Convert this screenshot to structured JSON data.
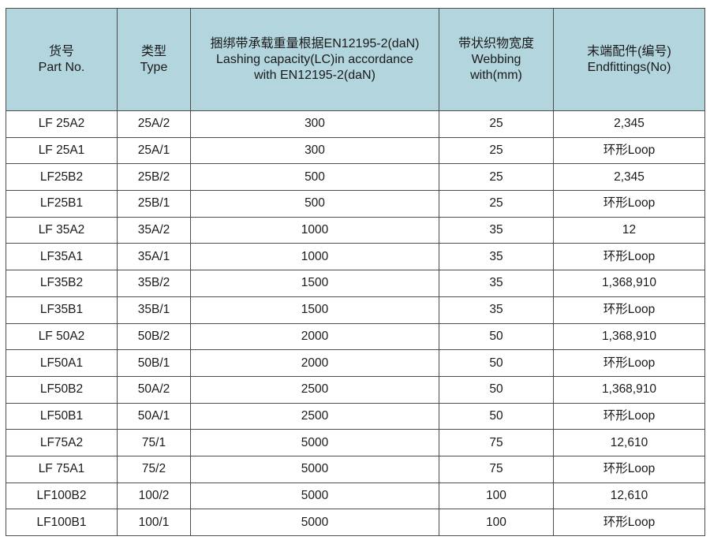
{
  "header": {
    "part_no": {
      "cn": "货号",
      "en": "Part No."
    },
    "type": {
      "cn": "类型",
      "en": "Type"
    },
    "capacity": {
      "cn": "捆绑带承载重量根据EN12195-2(daN)",
      "en1": "Lashing capacity(LC)in accordance",
      "en2": "with EN12195-2(daN)"
    },
    "webbing": {
      "cn": "带状织物宽度",
      "en1": "Webbing",
      "en2": "with(mm)"
    },
    "endfittings": {
      "cn": "末端配件(编号)",
      "en": "Endfittings(No)"
    }
  },
  "rows": [
    {
      "part": "LF 25A2",
      "type": "25A/2",
      "capacity": "300",
      "webbing": "25",
      "endfittings": "2,345"
    },
    {
      "part": "LF 25A1",
      "type": "25A/1",
      "capacity": "300",
      "webbing": "25",
      "endfittings": "环形Loop"
    },
    {
      "part": "LF25B2",
      "type": "25B/2",
      "capacity": "500",
      "webbing": "25",
      "endfittings": "2,345"
    },
    {
      "part": "LF25B1",
      "type": "25B/1",
      "capacity": "500",
      "webbing": "25",
      "endfittings": "环形Loop"
    },
    {
      "part": "LF 35A2",
      "type": "35A/2",
      "capacity": "1000",
      "webbing": "35",
      "endfittings": "12"
    },
    {
      "part": "LF35A1",
      "type": "35A/1",
      "capacity": "1000",
      "webbing": "35",
      "endfittings": "环形Loop"
    },
    {
      "part": "LF35B2",
      "type": "35B/2",
      "capacity": "1500",
      "webbing": "35",
      "endfittings": "1,368,910"
    },
    {
      "part": "LF35B1",
      "type": "35B/1",
      "capacity": "1500",
      "webbing": "35",
      "endfittings": "环形Loop"
    },
    {
      "part": "LF 50A2",
      "type": "50B/2",
      "capacity": "2000",
      "webbing": "50",
      "endfittings": "1,368,910"
    },
    {
      "part": "LF50A1",
      "type": "50B/1",
      "capacity": "2000",
      "webbing": "50",
      "endfittings": "环形Loop"
    },
    {
      "part": "LF50B2",
      "type": "50A/2",
      "capacity": "2500",
      "webbing": "50",
      "endfittings": "1,368,910"
    },
    {
      "part": "LF50B1",
      "type": "50A/1",
      "capacity": "2500",
      "webbing": "50",
      "endfittings": "环形Loop"
    },
    {
      "part": "LF75A2",
      "type": "75/1",
      "capacity": "5000",
      "webbing": "75",
      "endfittings": "12,610"
    },
    {
      "part": "LF 75A1",
      "type": "75/2",
      "capacity": "5000",
      "webbing": "75",
      "endfittings": "环形Loop"
    },
    {
      "part": "LF100B2",
      "type": "100/2",
      "capacity": "5000",
      "webbing": "100",
      "endfittings": "12,610"
    },
    {
      "part": "LF100B1",
      "type": "100/1",
      "capacity": "5000",
      "webbing": "100",
      "endfittings": "环形Loop"
    }
  ]
}
